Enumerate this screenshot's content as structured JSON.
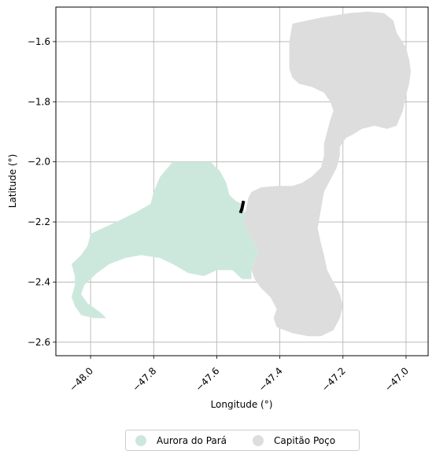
{
  "chart_data": {
    "type": "map",
    "xlabel": "Longitude (°)",
    "ylabel": "Latitude (°)",
    "xlim": [
      -48.11,
      -46.93
    ],
    "ylim": [
      -2.645,
      -1.485
    ],
    "grid": true,
    "xticks": [
      {
        "value": -48.0,
        "label": "−48.0"
      },
      {
        "value": -47.8,
        "label": "−47.8"
      },
      {
        "value": -47.6,
        "label": "−47.6"
      },
      {
        "value": -47.4,
        "label": "−47.4"
      },
      {
        "value": -47.2,
        "label": "−47.2"
      },
      {
        "value": -47.0,
        "label": "−47.0"
      }
    ],
    "yticks": [
      {
        "value": -1.6,
        "label": "−1.6"
      },
      {
        "value": -1.8,
        "label": "−1.8"
      },
      {
        "value": -2.0,
        "label": "−2.0"
      },
      {
        "value": -2.2,
        "label": "−2.2"
      },
      {
        "value": -2.4,
        "label": "−2.4"
      },
      {
        "value": -2.6,
        "label": "−2.6"
      }
    ],
    "legend_position": "bottom-center",
    "regions": [
      {
        "name": "Capitão Poço",
        "color": "#dddddd",
        "outline": [
          [
            -47.36,
            -1.54
          ],
          [
            -47.27,
            -1.52
          ],
          [
            -47.18,
            -1.505
          ],
          [
            -47.12,
            -1.5
          ],
          [
            -47.07,
            -1.505
          ],
          [
            -47.04,
            -1.53
          ],
          [
            -47.03,
            -1.57
          ],
          [
            -47.0,
            -1.62
          ],
          [
            -46.99,
            -1.66
          ],
          [
            -46.985,
            -1.7
          ],
          [
            -46.99,
            -1.74
          ],
          [
            -47.0,
            -1.78
          ],
          [
            -47.01,
            -1.83
          ],
          [
            -47.03,
            -1.88
          ],
          [
            -47.06,
            -1.89
          ],
          [
            -47.1,
            -1.88
          ],
          [
            -47.14,
            -1.89
          ],
          [
            -47.17,
            -1.91
          ],
          [
            -47.19,
            -1.92
          ],
          [
            -47.21,
            -1.95
          ],
          [
            -47.21,
            -1.98
          ],
          [
            -47.22,
            -2.02
          ],
          [
            -47.24,
            -2.06
          ],
          [
            -47.26,
            -2.1
          ],
          [
            -47.27,
            -2.16
          ],
          [
            -47.28,
            -2.22
          ],
          [
            -47.27,
            -2.27
          ],
          [
            -47.26,
            -2.31
          ],
          [
            -47.25,
            -2.36
          ],
          [
            -47.23,
            -2.4
          ],
          [
            -47.21,
            -2.44
          ],
          [
            -47.2,
            -2.48
          ],
          [
            -47.21,
            -2.52
          ],
          [
            -47.23,
            -2.56
          ],
          [
            -47.27,
            -2.58
          ],
          [
            -47.31,
            -2.58
          ],
          [
            -47.36,
            -2.57
          ],
          [
            -47.41,
            -2.55
          ],
          [
            -47.42,
            -2.52
          ],
          [
            -47.41,
            -2.49
          ],
          [
            -47.43,
            -2.45
          ],
          [
            -47.46,
            -2.42
          ],
          [
            -47.48,
            -2.39
          ],
          [
            -47.49,
            -2.36
          ],
          [
            -47.48,
            -2.33
          ],
          [
            -47.47,
            -2.3
          ],
          [
            -47.48,
            -2.27
          ],
          [
            -47.5,
            -2.24
          ],
          [
            -47.51,
            -2.21
          ],
          [
            -47.51,
            -2.17
          ],
          [
            -47.5,
            -2.12
          ],
          [
            -47.49,
            -2.1
          ],
          [
            -47.46,
            -2.085
          ],
          [
            -47.41,
            -2.08
          ],
          [
            -47.36,
            -2.08
          ],
          [
            -47.33,
            -2.07
          ],
          [
            -47.3,
            -2.05
          ],
          [
            -47.27,
            -2.02
          ],
          [
            -47.26,
            -1.98
          ],
          [
            -47.26,
            -1.94
          ],
          [
            -47.25,
            -1.9
          ],
          [
            -47.24,
            -1.86
          ],
          [
            -47.23,
            -1.83
          ],
          [
            -47.24,
            -1.8
          ],
          [
            -47.26,
            -1.77
          ],
          [
            -47.3,
            -1.75
          ],
          [
            -47.34,
            -1.74
          ],
          [
            -47.36,
            -1.72
          ],
          [
            -47.37,
            -1.69
          ],
          [
            -47.37,
            -1.65
          ],
          [
            -47.37,
            -1.6
          ],
          [
            -47.36,
            -1.54
          ]
        ]
      },
      {
        "name": "Aurora do Pará",
        "color": "#cce8dc",
        "outline": [
          [
            -47.74,
            -2.0
          ],
          [
            -47.62,
            -2.0
          ],
          [
            -47.59,
            -2.03
          ],
          [
            -47.57,
            -2.07
          ],
          [
            -47.56,
            -2.11
          ],
          [
            -47.54,
            -2.13
          ],
          [
            -47.52,
            -2.14
          ],
          [
            -47.51,
            -2.17
          ],
          [
            -47.51,
            -2.21
          ],
          [
            -47.5,
            -2.24
          ],
          [
            -47.48,
            -2.27
          ],
          [
            -47.47,
            -2.3
          ],
          [
            -47.48,
            -2.33
          ],
          [
            -47.49,
            -2.36
          ],
          [
            -47.49,
            -2.39
          ],
          [
            -47.52,
            -2.39
          ],
          [
            -47.55,
            -2.36
          ],
          [
            -47.6,
            -2.36
          ],
          [
            -47.64,
            -2.38
          ],
          [
            -47.69,
            -2.37
          ],
          [
            -47.74,
            -2.34
          ],
          [
            -47.78,
            -2.32
          ],
          [
            -47.84,
            -2.31
          ],
          [
            -47.89,
            -2.32
          ],
          [
            -47.94,
            -2.34
          ],
          [
            -47.98,
            -2.37
          ],
          [
            -48.02,
            -2.41
          ],
          [
            -48.03,
            -2.44
          ],
          [
            -48.01,
            -2.47
          ],
          [
            -47.97,
            -2.5
          ],
          [
            -47.95,
            -2.52
          ],
          [
            -47.99,
            -2.52
          ],
          [
            -48.03,
            -2.51
          ],
          [
            -48.05,
            -2.48
          ],
          [
            -48.06,
            -2.45
          ],
          [
            -48.05,
            -2.41
          ],
          [
            -48.05,
            -2.38
          ],
          [
            -48.06,
            -2.34
          ],
          [
            -48.03,
            -2.31
          ],
          [
            -48.01,
            -2.28
          ],
          [
            -48.0,
            -2.24
          ],
          [
            -47.96,
            -2.22
          ],
          [
            -47.92,
            -2.2
          ],
          [
            -47.86,
            -2.17
          ],
          [
            -47.81,
            -2.14
          ],
          [
            -47.8,
            -2.1
          ],
          [
            -47.78,
            -2.05
          ],
          [
            -47.74,
            -2.0
          ]
        ]
      }
    ],
    "border_segment": [
      [
        -47.515,
        -2.13
      ],
      [
        -47.52,
        -2.155
      ],
      [
        -47.525,
        -2.17
      ]
    ]
  },
  "legend": [
    {
      "label": "Aurora do Pará",
      "color": "#cce8dc"
    },
    {
      "label": "Capitão Poço",
      "color": "#dddddd"
    }
  ]
}
